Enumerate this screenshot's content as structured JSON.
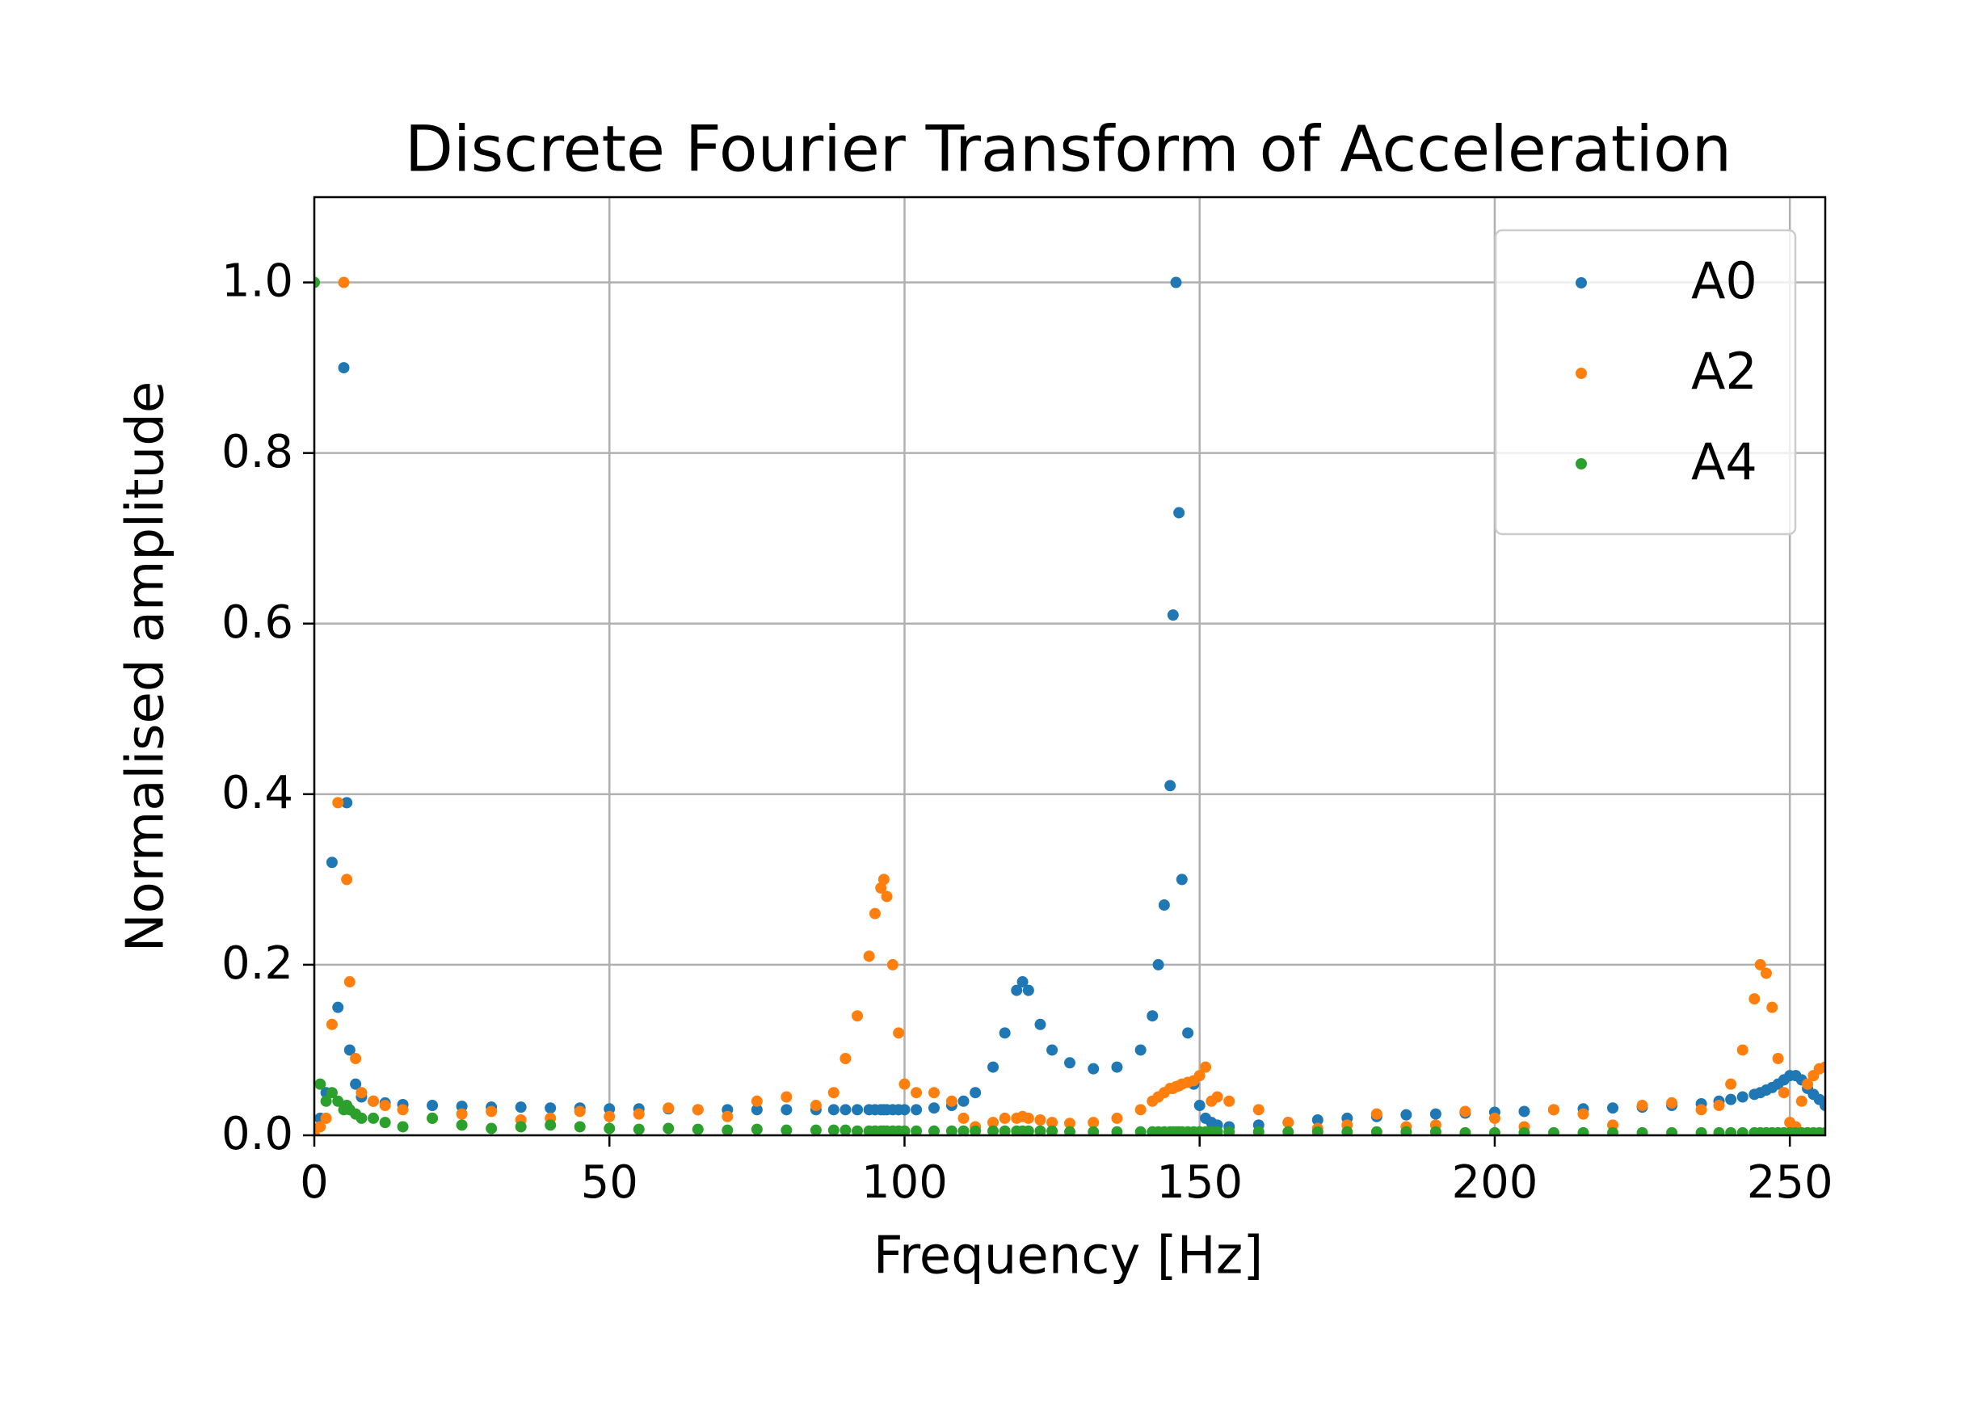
{
  "chart_data": {
    "type": "scatter",
    "title": "Discrete Fourier Transform of Acceleration",
    "x_label": "Frequency [Hz]",
    "y_label": "Normalised amplitude",
    "xlim": [
      0,
      256
    ],
    "ylim": [
      0,
      1.1
    ],
    "xticks": [
      0,
      50,
      100,
      150,
      200,
      250
    ],
    "yticks": [
      {
        "value": 0,
        "label": "0.0"
      },
      0.2,
      0.4,
      0.6,
      0.8,
      {
        "value": 1,
        "label": "1.0"
      }
    ],
    "grid": true,
    "legend": "upper right",
    "x": [
      0,
      1,
      2,
      3,
      4,
      5,
      5.5,
      6,
      7,
      8,
      10,
      12,
      15,
      20,
      25,
      30,
      35,
      40,
      45,
      50,
      55,
      60,
      65,
      70,
      75,
      80,
      85,
      88,
      90,
      92,
      94,
      95,
      96,
      96.5,
      97,
      98,
      99,
      100,
      102,
      105,
      108,
      110,
      112,
      115,
      117,
      119,
      120,
      121,
      123,
      125,
      128,
      132,
      136,
      140,
      142,
      143,
      144,
      145,
      145.5,
      146,
      146.5,
      147,
      148,
      149,
      150,
      151,
      152,
      153,
      155,
      160,
      165,
      170,
      175,
      180,
      185,
      190,
      195,
      200,
      205,
      210,
      215,
      220,
      225,
      230,
      235,
      238,
      240,
      242,
      244,
      245,
      246,
      247,
      248,
      249,
      250,
      251,
      252,
      253,
      254,
      255,
      256
    ],
    "series": [
      {
        "name": "A0",
        "color": "#1f77b4",
        "values": [
          0,
          0.02,
          0.05,
          0.32,
          0.15,
          0.9,
          0.39,
          0.1,
          0.06,
          0.045,
          0.04,
          0.038,
          0.036,
          0.035,
          0.034,
          0.033,
          0.033,
          0.032,
          0.032,
          0.031,
          0.031,
          0.031,
          0.03,
          0.03,
          0.03,
          0.03,
          0.03,
          0.03,
          0.03,
          0.03,
          0.03,
          0.03,
          0.03,
          0.03,
          0.03,
          0.03,
          0.03,
          0.03,
          0.03,
          0.032,
          0.035,
          0.04,
          0.05,
          0.08,
          0.12,
          0.17,
          0.18,
          0.17,
          0.13,
          0.1,
          0.085,
          0.078,
          0.08,
          0.1,
          0.14,
          0.2,
          0.27,
          0.41,
          0.61,
          1.0,
          0.73,
          0.3,
          0.12,
          0.06,
          0.035,
          0.02,
          0.015,
          0.012,
          0.01,
          0.012,
          0.015,
          0.018,
          0.02,
          0.022,
          0.024,
          0.025,
          0.026,
          0.027,
          0.028,
          0.03,
          0.031,
          0.032,
          0.033,
          0.035,
          0.037,
          0.04,
          0.042,
          0.045,
          0.048,
          0.05,
          0.053,
          0.056,
          0.06,
          0.065,
          0.07,
          0.07,
          0.065,
          0.055,
          0.048,
          0.042,
          0.035
        ]
      },
      {
        "name": "A2",
        "color": "#ff7f0e",
        "values": [
          0,
          0.01,
          0.02,
          0.13,
          0.39,
          1.0,
          0.3,
          0.18,
          0.09,
          0.05,
          0.04,
          0.035,
          0.03,
          0.02,
          0.025,
          0.028,
          0.018,
          0.02,
          0.028,
          0.022,
          0.025,
          0.032,
          0.03,
          0.022,
          0.04,
          0.045,
          0.035,
          0.05,
          0.09,
          0.14,
          0.21,
          0.26,
          0.29,
          0.3,
          0.28,
          0.2,
          0.12,
          0.06,
          0.05,
          0.05,
          0.04,
          0.02,
          0.01,
          0.015,
          0.02,
          0.02,
          0.022,
          0.02,
          0.018,
          0.015,
          0.014,
          0.015,
          0.02,
          0.03,
          0.04,
          0.045,
          0.05,
          0.055,
          0.055,
          0.057,
          0.058,
          0.06,
          0.062,
          0.064,
          0.07,
          0.08,
          0.04,
          0.045,
          0.04,
          0.03,
          0.015,
          0.008,
          0.012,
          0.025,
          0.01,
          0.012,
          0.028,
          0.02,
          0.01,
          0.03,
          0.025,
          0.012,
          0.035,
          0.038,
          0.03,
          0.035,
          0.06,
          0.1,
          0.16,
          0.2,
          0.19,
          0.15,
          0.09,
          0.05,
          0.015,
          0.01,
          0.04,
          0.06,
          0.07,
          0.078,
          0.08
        ]
      },
      {
        "name": "A4",
        "color": "#2ca02c",
        "values": [
          1.0,
          0.06,
          0.04,
          0.05,
          0.04,
          0.03,
          0.035,
          0.03,
          0.025,
          0.02,
          0.02,
          0.015,
          0.01,
          0.02,
          0.012,
          0.008,
          0.01,
          0.012,
          0.01,
          0.008,
          0.007,
          0.008,
          0.007,
          0.006,
          0.007,
          0.006,
          0.006,
          0.006,
          0.006,
          0.005,
          0.005,
          0.005,
          0.005,
          0.005,
          0.005,
          0.005,
          0.005,
          0.005,
          0.005,
          0.005,
          0.005,
          0.005,
          0.005,
          0.005,
          0.005,
          0.005,
          0.005,
          0.005,
          0.005,
          0.005,
          0.004,
          0.004,
          0.004,
          0.004,
          0.004,
          0.004,
          0.004,
          0.004,
          0.004,
          0.004,
          0.004,
          0.004,
          0.004,
          0.004,
          0.004,
          0.004,
          0.004,
          0.004,
          0.004,
          0.004,
          0.004,
          0.004,
          0.004,
          0.004,
          0.004,
          0.004,
          0.003,
          0.003,
          0.003,
          0.003,
          0.003,
          0.003,
          0.003,
          0.003,
          0.003,
          0.003,
          0.003,
          0.003,
          0.003,
          0.003,
          0.003,
          0.003,
          0.003,
          0.003,
          0.003,
          0.003,
          0.003,
          0.003,
          0.003,
          0.003,
          0.003
        ]
      }
    ]
  }
}
